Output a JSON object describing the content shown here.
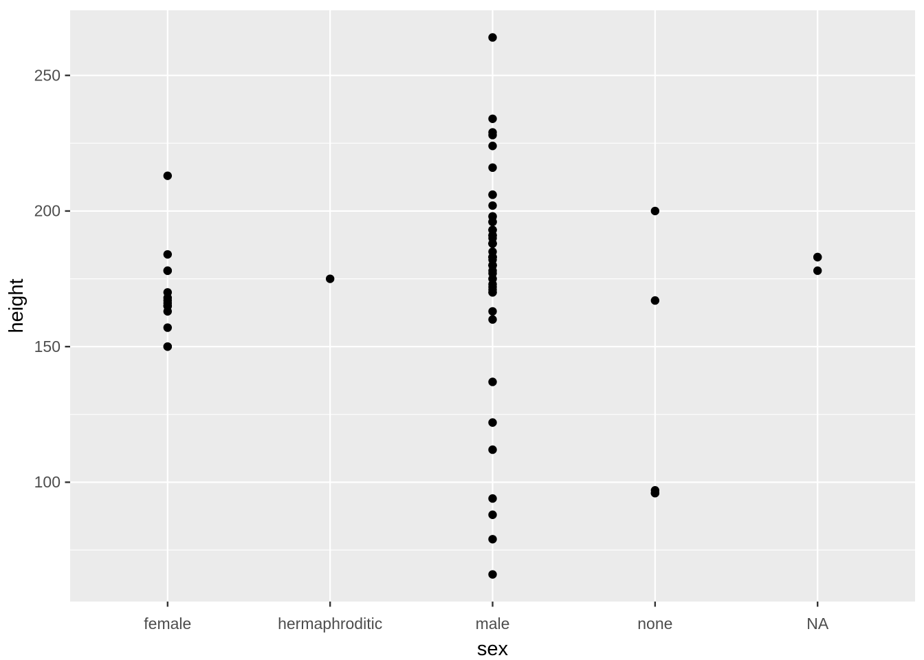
{
  "chart_data": {
    "type": "scatter",
    "title": "",
    "xlabel": "sex",
    "ylabel": "height",
    "categories": [
      "female",
      "hermaphroditic",
      "male",
      "none",
      "NA"
    ],
    "series": [
      {
        "name": "female",
        "values": [
          213,
          184,
          178,
          178,
          170,
          168,
          167,
          166,
          165,
          165,
          165,
          163,
          157,
          150,
          150
        ]
      },
      {
        "name": "hermaphroditic",
        "values": [
          175
        ]
      },
      {
        "name": "male",
        "values": [
          264,
          234,
          229,
          228,
          224,
          216,
          206,
          206,
          202,
          198,
          198,
          196,
          196,
          196,
          193,
          193,
          193,
          191,
          191,
          191,
          190,
          188,
          188,
          188,
          188,
          188,
          185,
          183,
          183,
          183,
          183,
          183,
          182,
          180,
          180,
          180,
          180,
          180,
          178,
          177,
          175,
          175,
          173,
          172,
          171,
          170,
          170,
          163,
          160,
          137,
          122,
          112,
          94,
          88,
          79,
          66
        ]
      },
      {
        "name": "none",
        "values": [
          200,
          167,
          97,
          96,
          96
        ]
      },
      {
        "name": "NA",
        "values": [
          183,
          183,
          178
        ]
      }
    ],
    "y_axis": {
      "major_ticks": [
        100,
        150,
        200,
        250
      ],
      "major_tick_labels": [
        "100",
        "150",
        "200",
        "250"
      ],
      "minor_ticks": [
        75,
        125,
        175,
        225
      ],
      "ylim": [
        56,
        274
      ]
    },
    "x_axis": {
      "tick_labels": [
        "female",
        "hermaphroditic",
        "male",
        "none",
        "NA"
      ]
    },
    "legend": "none",
    "grid": "on",
    "style": {
      "panel_bg": "#EBEBEB",
      "grid_color": "#FFFFFF",
      "point_color": "#000000",
      "tick_mark_color": "#333333",
      "tick_label_color": "#4D4D4D",
      "axis_title_color": "#000000",
      "outer_bg": "#FFFFFF"
    }
  }
}
